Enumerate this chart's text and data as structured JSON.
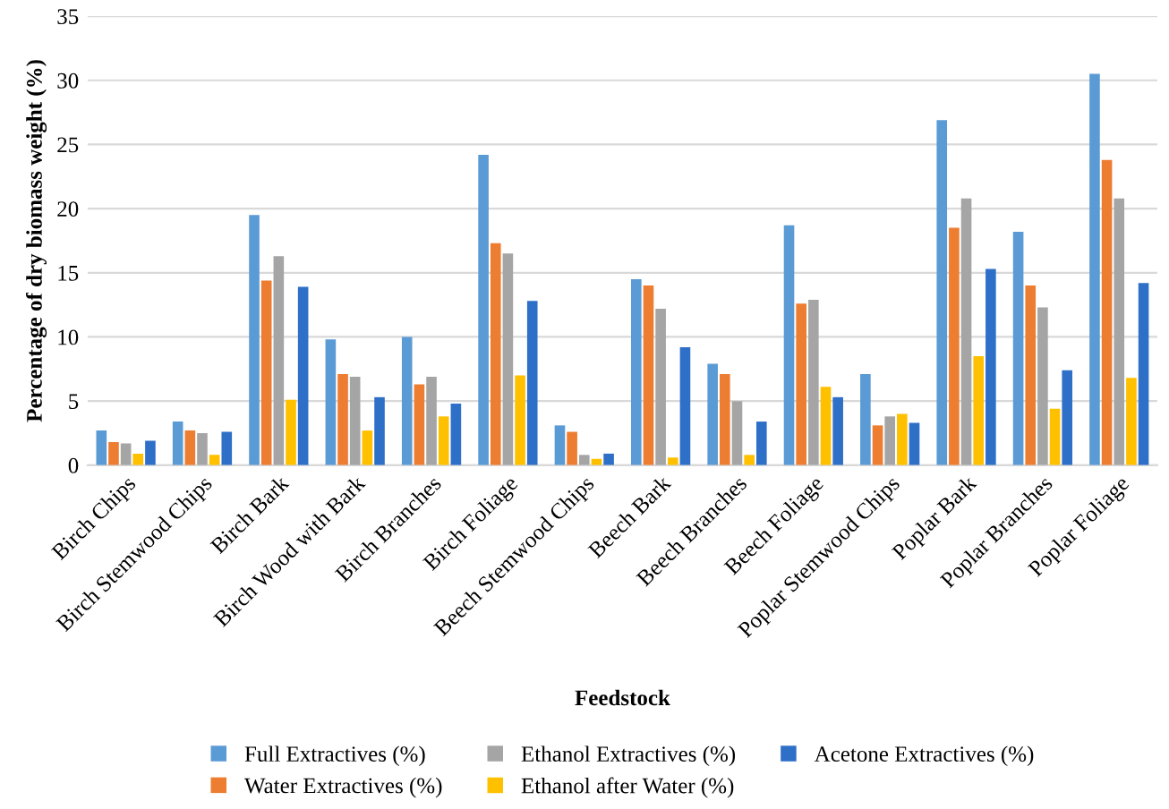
{
  "chart_data": {
    "type": "bar",
    "xlabel": "Feedstock",
    "ylabel": "Percentage of dry biomass weight (%)",
    "categories": [
      "Birch Chips",
      "Birch Stemwood Chips",
      "Birch Bark",
      "Birch Wood with Bark",
      "Birch Branches",
      "Birch Foliage",
      "Beech Stemwood Chips",
      "Beech Bark",
      "Beech Branches",
      "Beech Foliage",
      "Poplar Stemwood Chips",
      "Poplar Bark",
      "Poplar Branches",
      "Poplar Foliage"
    ],
    "series": [
      {
        "name": "Full Extractives (%)",
        "color": "#5b9bd5",
        "values": [
          2.7,
          3.4,
          19.5,
          9.8,
          10.0,
          24.2,
          3.1,
          14.5,
          7.9,
          18.7,
          7.1,
          26.9,
          18.2,
          30.5
        ]
      },
      {
        "name": "Water Extractives (%)",
        "color": "#ed7d31",
        "values": [
          1.8,
          2.7,
          14.4,
          7.1,
          6.3,
          17.3,
          2.6,
          14.0,
          7.1,
          12.6,
          3.1,
          18.5,
          14.0,
          23.8
        ]
      },
      {
        "name": "Ethanol Extractives (%)",
        "color": "#a5a5a5",
        "values": [
          1.7,
          2.5,
          16.3,
          6.9,
          6.9,
          16.5,
          0.8,
          12.2,
          5.0,
          12.9,
          3.8,
          20.8,
          12.3,
          20.8
        ]
      },
      {
        "name": "Ethanol after Water (%)",
        "color": "#ffc000",
        "values": [
          0.9,
          0.8,
          5.1,
          2.7,
          3.8,
          7.0,
          0.5,
          0.6,
          0.8,
          6.1,
          4.0,
          8.5,
          4.4,
          6.8
        ]
      },
      {
        "name": "Acetone Extractives (%)",
        "color": "#2e6fc8",
        "values": [
          1.9,
          2.6,
          13.9,
          5.3,
          4.8,
          12.8,
          0.9,
          9.2,
          3.4,
          5.3,
          3.3,
          15.3,
          7.4,
          14.2
        ]
      }
    ],
    "ylim": [
      0,
      35
    ],
    "yticks": [
      0,
      5,
      10,
      15,
      20,
      25,
      30,
      35
    ],
    "grid": "y",
    "legend": "bottom"
  }
}
